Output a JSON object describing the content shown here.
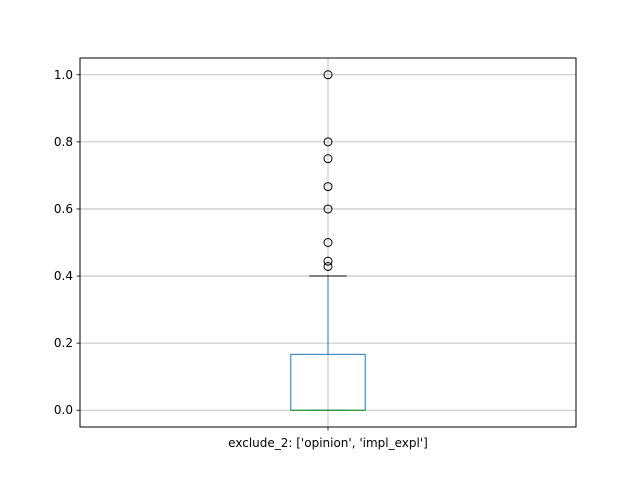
{
  "chart_data": {
    "type": "box",
    "title": "",
    "xlabel": "",
    "ylabel": "",
    "categories": [
      "exclude_2: ['opinion', 'impl_expl']"
    ],
    "ylim": [
      -0.05,
      1.05
    ],
    "yticks": [
      0.0,
      0.2,
      0.4,
      0.6,
      0.8,
      1.0
    ],
    "ytick_labels": [
      "0.0",
      "0.2",
      "0.4",
      "0.6",
      "0.8",
      "1.0"
    ],
    "grid": true,
    "boxes": [
      {
        "category": "exclude_2: ['opinion', 'impl_expl']",
        "whisker_low": 0.0,
        "q1": 0.0,
        "median": 0.0,
        "q3": 0.1667,
        "whisker_high": 0.4,
        "outliers": [
          0.4286,
          0.4444,
          0.5,
          0.6,
          0.6667,
          0.75,
          0.8,
          1.0
        ]
      }
    ],
    "colors": {
      "box": "#1f77b4",
      "whisker": "#1f77b4",
      "cap": "#000000",
      "median": "#2ca02c",
      "grid": "#b0b0b0",
      "outlier": "#000000"
    }
  }
}
